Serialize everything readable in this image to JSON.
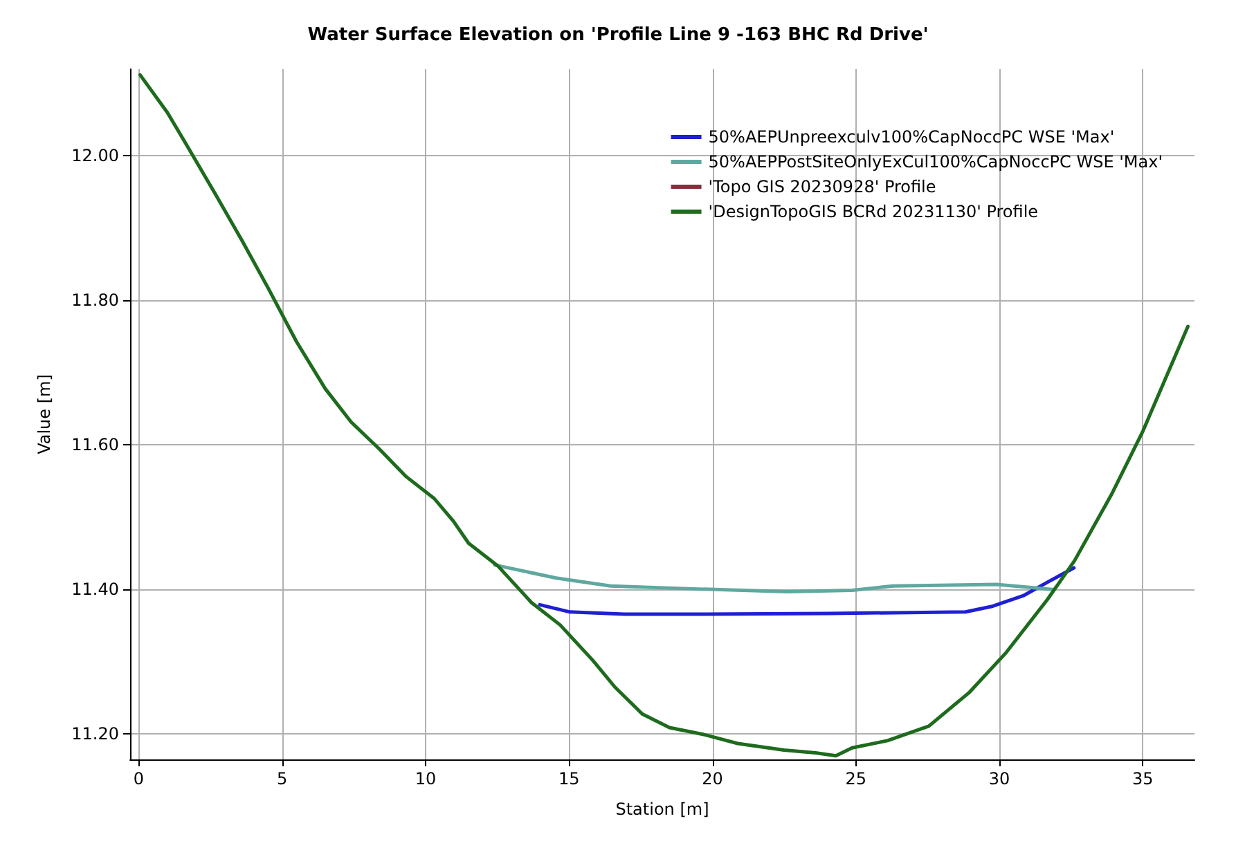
{
  "chart_data": {
    "type": "line",
    "title": "Water Surface Elevation on 'Profile Line 9 -163 BHC Rd Drive'",
    "xlabel": "Station [m]",
    "ylabel": "Value [m]",
    "xlim": [
      -0.3,
      36.8
    ],
    "xticks": [
      0,
      5,
      10,
      15,
      20,
      25,
      30,
      35
    ],
    "ylim": [
      11.165,
      12.12
    ],
    "yticks": [
      {
        "value": 11.2,
        "label": "11.20"
      },
      {
        "value": 11.4,
        "label": "11.40"
      },
      {
        "value": 11.6,
        "label": "11.60"
      },
      {
        "value": 11.8,
        "label": "11.80"
      },
      {
        "value": 12,
        "label": "12.00"
      }
    ],
    "grid": true,
    "legend": "top right",
    "marker": "none",
    "line_style": "solid",
    "series": [
      {
        "name": "50%AEPUnpreexculv100%CapNoccPC WSE 'Max'",
        "color": "#1f1fd6",
        "x": [
          13.98,
          15.03,
          16.93,
          19.64,
          24.06,
          28.82,
          29.77,
          30.86,
          31.76,
          32.6
        ],
        "values": [
          11.379,
          11.369,
          11.366,
          11.366,
          11.367,
          11.369,
          11.377,
          11.392,
          11.412,
          11.43
        ]
      },
      {
        "name": "50%AEPPostSiteOnlyExCul100%CapNoccPC WSE 'Max'",
        "color": "#5fa8a0",
        "x": [
          12.41,
          14.55,
          16.45,
          19.3,
          22.6,
          24.87,
          26.3,
          29.9,
          31.05,
          31.9
        ],
        "values": [
          11.434,
          11.416,
          11.405,
          11.401,
          11.397,
          11.399,
          11.405,
          11.407,
          11.403,
          11.4
        ]
      },
      {
        "name": "'Topo GIS 20230928' Profile",
        "color": "#8b2a3a"
      },
      {
        "name": "'DesignTopoGIS BCRd 20231130' Profile",
        "color": "#1e6b1e",
        "x": [
          0.05,
          1.0,
          1.7,
          2.66,
          3.6,
          4.5,
          5.5,
          6.5,
          7.4,
          8.4,
          9.3,
          10.3,
          10.98,
          11.5,
          12.51,
          13.69,
          14.69,
          15.83,
          16.6,
          17.55,
          18.5,
          19.64,
          20.88,
          22.49,
          23.59,
          24.3,
          24.87,
          26.1,
          27.54,
          28.96,
          30.24,
          31.67,
          32.62,
          33.9,
          35.0,
          36.57
        ],
        "values": [
          12.112,
          12.06,
          12.013,
          11.948,
          11.883,
          11.818,
          11.743,
          11.678,
          11.632,
          11.594,
          11.557,
          11.526,
          11.494,
          11.464,
          11.433,
          11.382,
          11.351,
          11.302,
          11.265,
          11.228,
          11.209,
          11.2,
          11.187,
          11.178,
          11.174,
          11.17,
          11.181,
          11.191,
          11.211,
          11.258,
          11.313,
          11.386,
          11.44,
          11.531,
          11.619,
          11.764
        ]
      }
    ]
  }
}
